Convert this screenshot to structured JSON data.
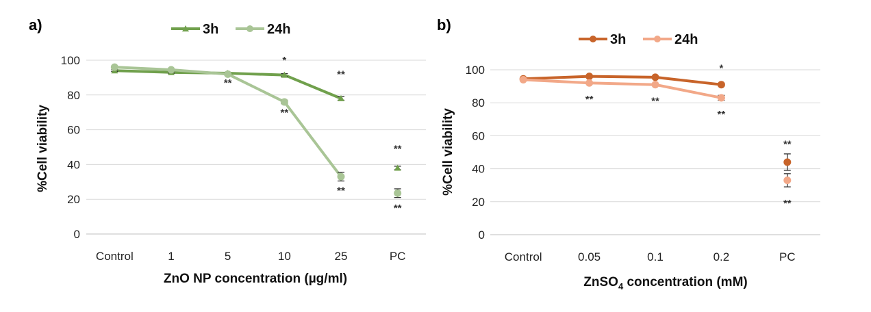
{
  "chart_data": [
    {
      "panel_label": "a)",
      "type": "line",
      "xlabel": "ZnO NP concentration (µg/ml)",
      "ylabel": "%Cell viability",
      "ylim": [
        0,
        100
      ],
      "yticks": [
        0,
        20,
        40,
        60,
        80,
        100
      ],
      "categories": [
        "Control",
        "1",
        "5",
        "10",
        "25",
        "PC"
      ],
      "grid": true,
      "legend_position": "top",
      "series": [
        {
          "name": "3h",
          "color": "#70a04c",
          "marker": "triangle",
          "values": [
            94,
            93,
            92.5,
            91.5,
            78,
            38
          ],
          "errors": [
            0.5,
            0.5,
            0.5,
            0.8,
            1,
            1
          ],
          "connected": [
            true,
            true,
            true,
            true,
            true,
            false
          ]
        },
        {
          "name": "24h",
          "color": "#a9c596",
          "marker": "circle",
          "values": [
            96,
            94.5,
            92,
            76,
            33,
            23.5
          ],
          "errors": [
            0.5,
            0.5,
            0.5,
            1,
            2.5,
            2.5
          ],
          "connected": [
            true,
            true,
            true,
            true,
            true,
            false
          ]
        }
      ],
      "annotations": [
        {
          "category": "5",
          "value": 85,
          "text": "**"
        },
        {
          "category": "10",
          "value": 98,
          "text": "*"
        },
        {
          "category": "10",
          "value": 68,
          "text": "**"
        },
        {
          "category": "25",
          "value": 90,
          "text": "**"
        },
        {
          "category": "25",
          "value": 23,
          "text": "**"
        },
        {
          "category": "PC",
          "value": 47,
          "text": "**"
        },
        {
          "category": "PC",
          "value": 13,
          "text": "**"
        }
      ]
    },
    {
      "panel_label": "b)",
      "type": "line",
      "xlabel_main": "ZnSO",
      "xlabel_sub": "4",
      "xlabel_rest": " concentration (mM)",
      "ylabel": "%Cell viability",
      "ylim": [
        0,
        100
      ],
      "yticks": [
        0,
        20,
        40,
        60,
        80,
        100
      ],
      "categories": [
        "Control",
        "0.05",
        "0.1",
        "0.2",
        "PC"
      ],
      "grid": true,
      "legend_position": "top",
      "series": [
        {
          "name": "3h",
          "color": "#c8642a",
          "marker": "circle",
          "values": [
            94.5,
            96,
            95.5,
            91,
            44
          ],
          "errors": [
            0.5,
            0.5,
            0.5,
            0.8,
            5
          ],
          "connected": [
            true,
            true,
            true,
            true,
            false
          ]
        },
        {
          "name": "24h",
          "color": "#f2a888",
          "marker": "circle",
          "values": [
            94,
            92,
            91,
            83,
            33
          ],
          "errors": [
            0.5,
            0.5,
            0.5,
            1.5,
            4
          ],
          "connected": [
            true,
            true,
            true,
            true,
            false
          ]
        }
      ],
      "annotations": [
        {
          "category": "0.2",
          "value": 99,
          "text": "*"
        },
        {
          "category": "0.05",
          "value": 80,
          "text": "**"
        },
        {
          "category": "0.1",
          "value": 79,
          "text": "**"
        },
        {
          "category": "0.2",
          "value": 71,
          "text": "**"
        },
        {
          "category": "PC",
          "value": 53,
          "text": "**"
        },
        {
          "category": "PC",
          "value": 17,
          "text": "**"
        }
      ]
    }
  ]
}
